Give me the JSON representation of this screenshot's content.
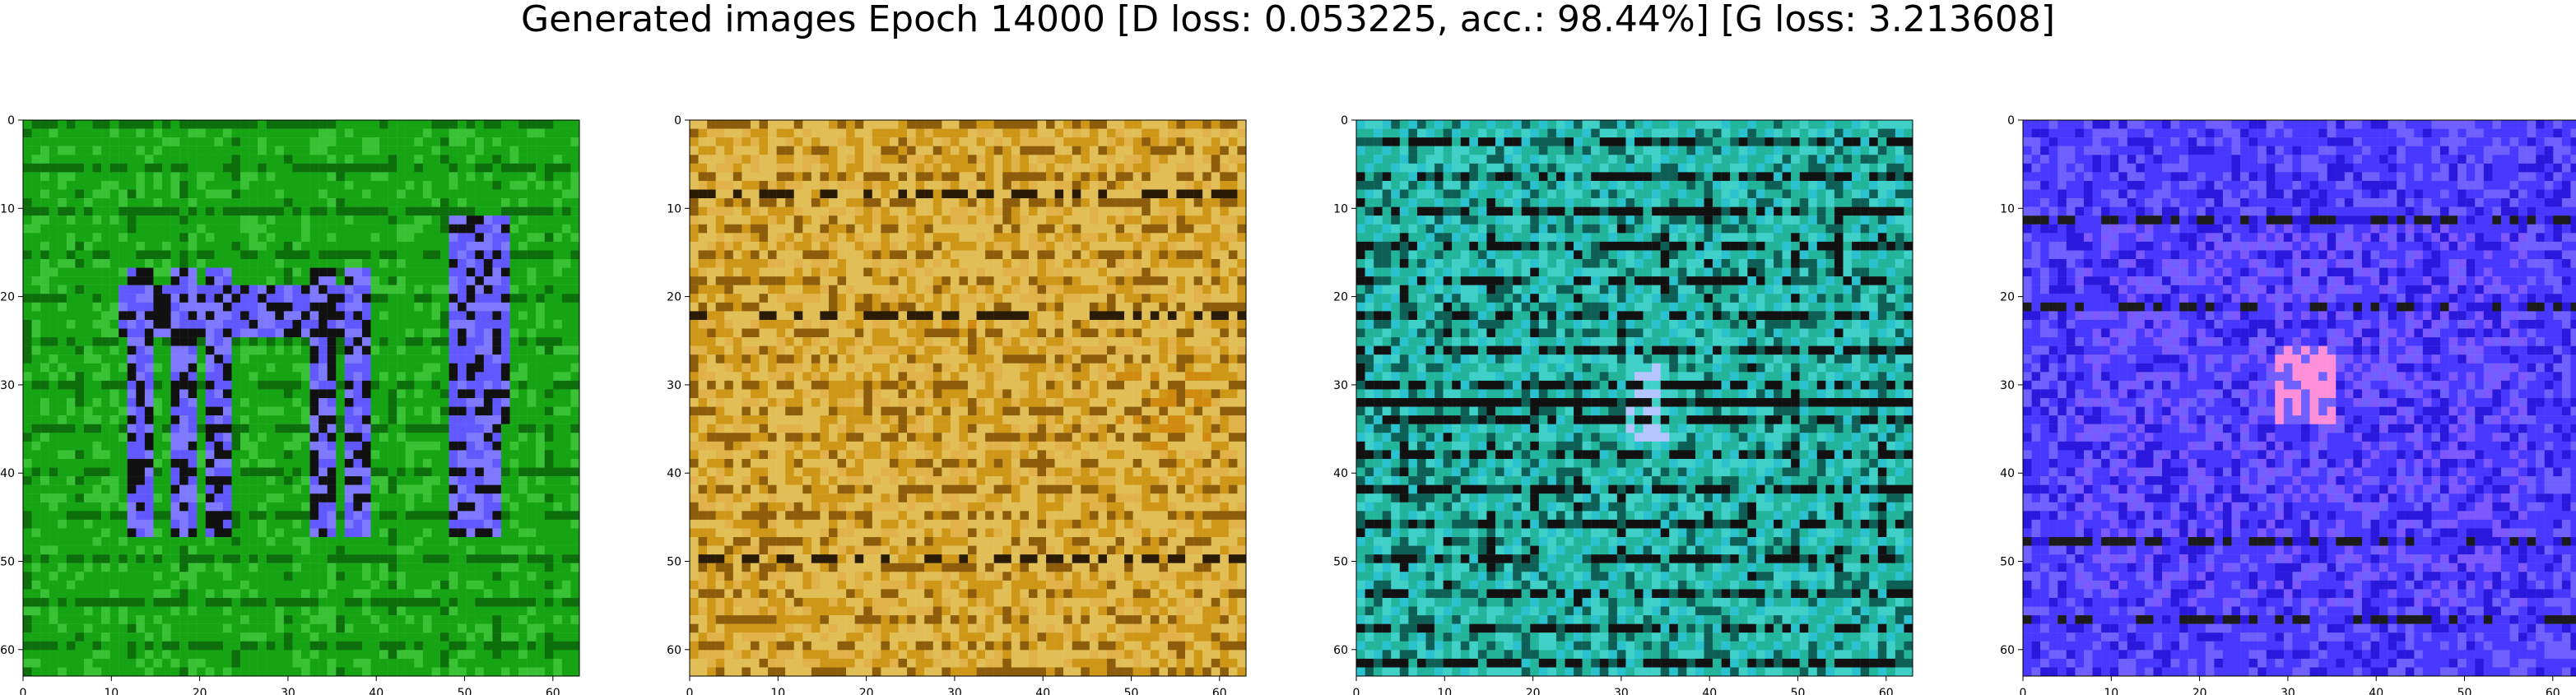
{
  "title": "Generated images Epoch 14000 [D loss: 0.053225, acc.: 98.44%] [G loss: 3.213608]",
  "axes": {
    "x_ticks": [
      "0",
      "10",
      "20",
      "30",
      "40",
      "50",
      "60"
    ],
    "y_ticks": [
      "0",
      "10",
      "20",
      "30",
      "40",
      "50",
      "60"
    ],
    "range": [
      0,
      63
    ]
  },
  "images": [
    {
      "name": "green-blue-generated-image",
      "palette": {
        "base": "#17a414",
        "light": "#39c235",
        "dark": "#0d6f0c",
        "accent": "#6258ff",
        "accent2": "#7f79ff",
        "mark": "#111111"
      },
      "pattern": "vertical-bars"
    },
    {
      "name": "golden-generated-image",
      "palette": {
        "base": "#cf9718",
        "light": "#e1b24a",
        "dark": "#8e5d0b",
        "accent": "#e1bf56",
        "accent2": "#d08a10",
        "mark": "#2a1b05"
      },
      "pattern": "streaks"
    },
    {
      "name": "teal-generated-image",
      "palette": {
        "base": "#22b59c",
        "light": "#3fd0c7",
        "dark": "#0e5f55",
        "accent": "#2ac2cf",
        "accent2": "#b4c5ff",
        "mark": "#111111"
      },
      "pattern": "stripes"
    },
    {
      "name": "blue-purple-generated-image",
      "palette": {
        "base": "#4938ff",
        "light": "#6f60ff",
        "dark": "#2a18dc",
        "accent": "#7e58ff",
        "accent2": "#ff8fd8",
        "mark": "#1b1b1b"
      },
      "pattern": "checker"
    }
  ]
}
